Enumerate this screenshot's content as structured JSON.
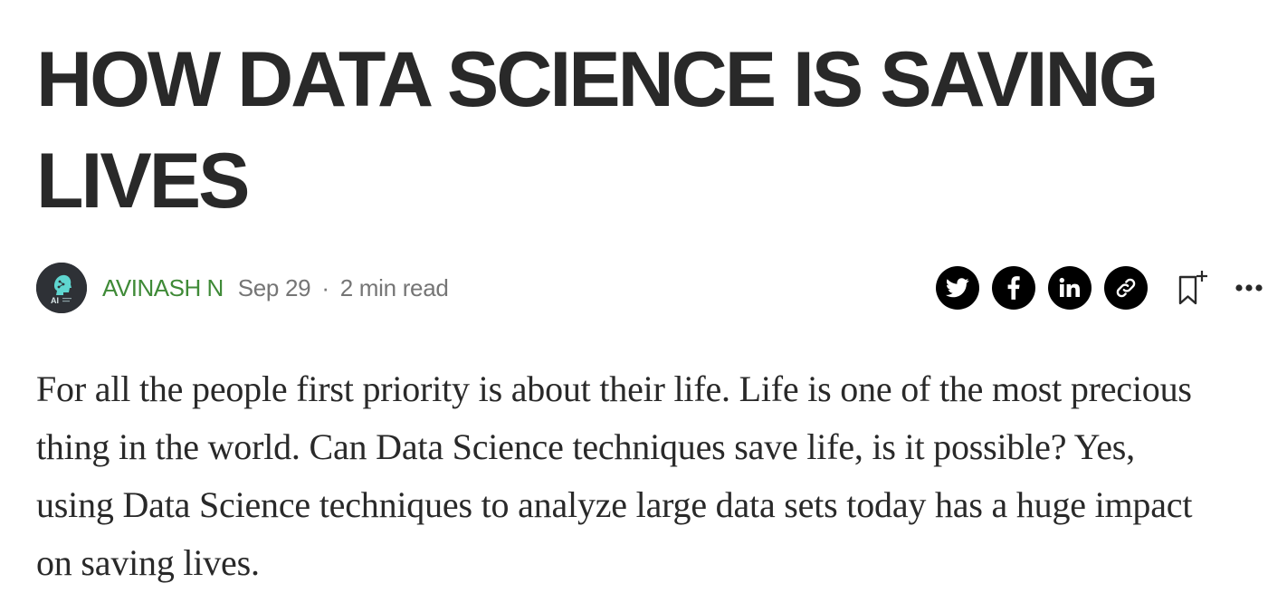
{
  "article": {
    "title": "HOW DATA SCIENCE IS SAVING LIVES",
    "body": "For all the people first priority is about their life. Life is one of the most precious thing in the world. Can Data Science techniques save life, is it possible? Yes, using Data Science techniques to analyze large data sets today has a huge impact on saving lives."
  },
  "byline": {
    "author": "AVINASH N",
    "date": "Sep 29",
    "separator": "·",
    "read_time": "2 min read",
    "avatar_text": "AI"
  },
  "actions": {
    "icons": [
      "twitter-icon",
      "facebook-icon",
      "linkedin-icon",
      "link-icon",
      "bookmark-add-icon",
      "more-icon"
    ]
  },
  "colors": {
    "text": "#292929",
    "author": "#3f8a37",
    "meta": "#757575",
    "share_bg": "#000000"
  }
}
